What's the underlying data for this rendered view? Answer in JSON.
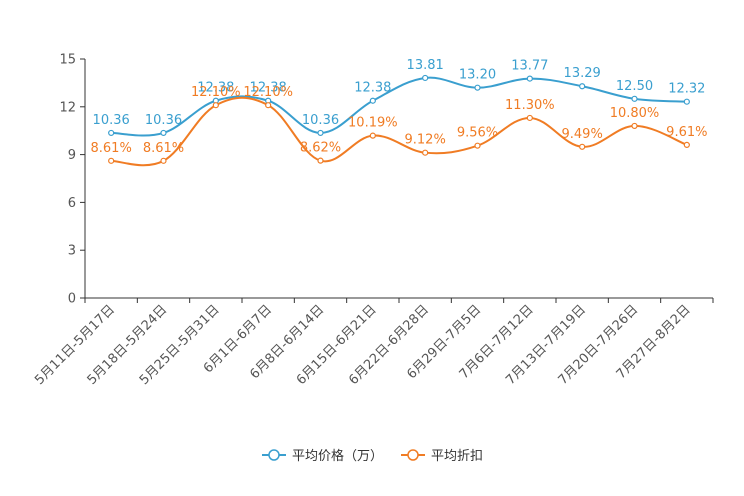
{
  "chart_data": {
    "type": "line",
    "title": "",
    "xlabel": "",
    "ylabel": "",
    "ylim": [
      0,
      15
    ],
    "yticks": [
      0,
      3,
      6,
      9,
      12,
      15
    ],
    "categories": [
      "5月11日-5月17日",
      "5月18日-5月24日",
      "5月25日-5月31日",
      "6月1日-6月7日",
      "6月8日-6月14日",
      "6月15日-6月21日",
      "6月22日-6月28日",
      "6月29日-7月5日",
      "7月6日-7月12日",
      "7月13日-7月19日",
      "7月20日-7月26日",
      "7月27日-8月2日"
    ],
    "series": [
      {
        "name": "平均价格（万）",
        "color": "#3a9fcf",
        "values": [
          10.36,
          10.36,
          12.38,
          12.38,
          10.36,
          12.38,
          13.81,
          13.2,
          13.77,
          13.29,
          12.5,
          12.32
        ],
        "labels": [
          "10.36",
          "10.36",
          "12.38",
          "12.38",
          "10.36",
          "12.38",
          "13.81",
          "13.20",
          "13.77",
          "13.29",
          "12.50",
          "12.32"
        ]
      },
      {
        "name": "平均折扣",
        "color": "#f07c24",
        "values": [
          8.61,
          8.61,
          12.1,
          12.1,
          8.62,
          10.19,
          9.12,
          9.56,
          11.3,
          9.49,
          10.8,
          9.61
        ],
        "labels": [
          "8.61%",
          "8.61%",
          "12.10%",
          "12.10%",
          "8.62%",
          "10.19%",
          "9.12%",
          "9.56%",
          "11.30%",
          "9.49%",
          "10.80%",
          "9.61%"
        ]
      }
    ],
    "legend": "bottom-center",
    "grid": false
  }
}
